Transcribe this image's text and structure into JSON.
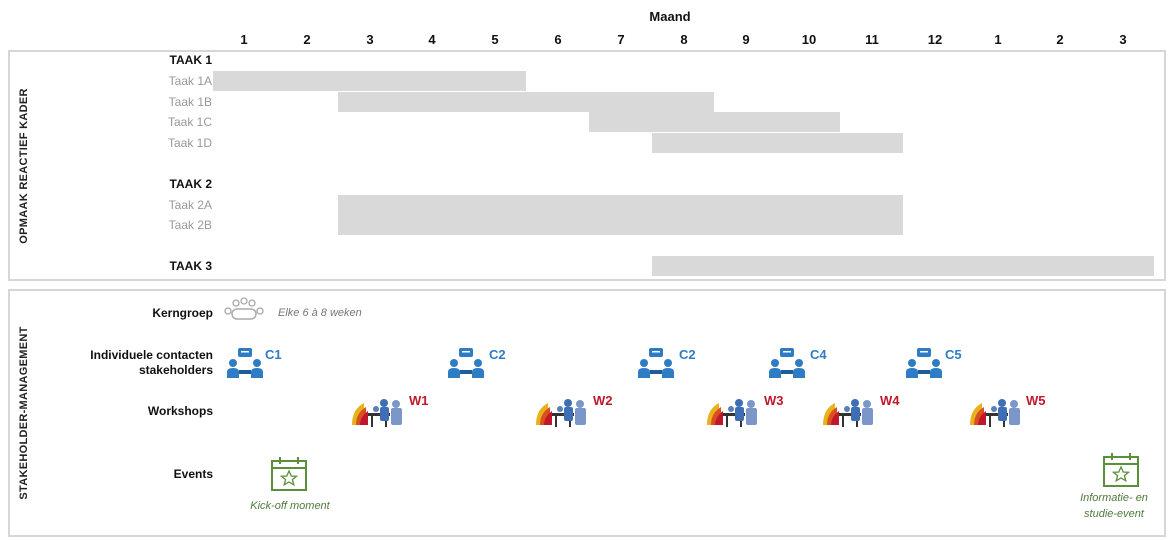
{
  "header": {
    "title": "Maand",
    "months": [
      "1",
      "2",
      "3",
      "4",
      "5",
      "6",
      "7",
      "8",
      "9",
      "10",
      "11",
      "12",
      "1",
      "2",
      "3"
    ]
  },
  "section1": {
    "label": "OPMAAK REACTIEF KADER",
    "tasks": [
      {
        "name": "TAAK 1",
        "subtasks": [
          "Taak 1A",
          "Taak 1B",
          "Taak 1C",
          "Taak 1D"
        ]
      },
      {
        "name": "TAAK 2",
        "subtasks": [
          "Taak 2A",
          "Taak 2B"
        ]
      },
      {
        "name": "TAAK 3",
        "subtasks": []
      }
    ]
  },
  "section2": {
    "label": "STAKEHOLDER-MANAGEMENT",
    "rows": {
      "kerngroep": {
        "label": "Kerngroep",
        "note": "Elke 6 à 8 weken"
      },
      "contacten": {
        "label_line1": "Individuele contacten",
        "label_line2": "stakeholders",
        "items": [
          "C1",
          "C2",
          "C2",
          "C4",
          "C5"
        ]
      },
      "workshops": {
        "label": "Workshops",
        "items": [
          "W1",
          "W2",
          "W3",
          "W4",
          "W5"
        ]
      },
      "events": {
        "label": "Events",
        "items": [
          {
            "line1": "Kick-off moment",
            "line2": ""
          },
          {
            "line1": "Informatie- en",
            "line2": "studie-event"
          }
        ]
      }
    }
  },
  "colors": {
    "bar": "#d9d9d9",
    "contact_tag": "#2e7dc4",
    "workshop_tag": "#c0182a",
    "event_icon": "#5a8f3c",
    "panel_border": "#d6d6d6"
  },
  "icons": {
    "kerngroep": "meeting-table-icon",
    "contacten": "conversation-icon",
    "workshops": "workshop-group-icon",
    "events": "calendar-star-icon"
  }
}
